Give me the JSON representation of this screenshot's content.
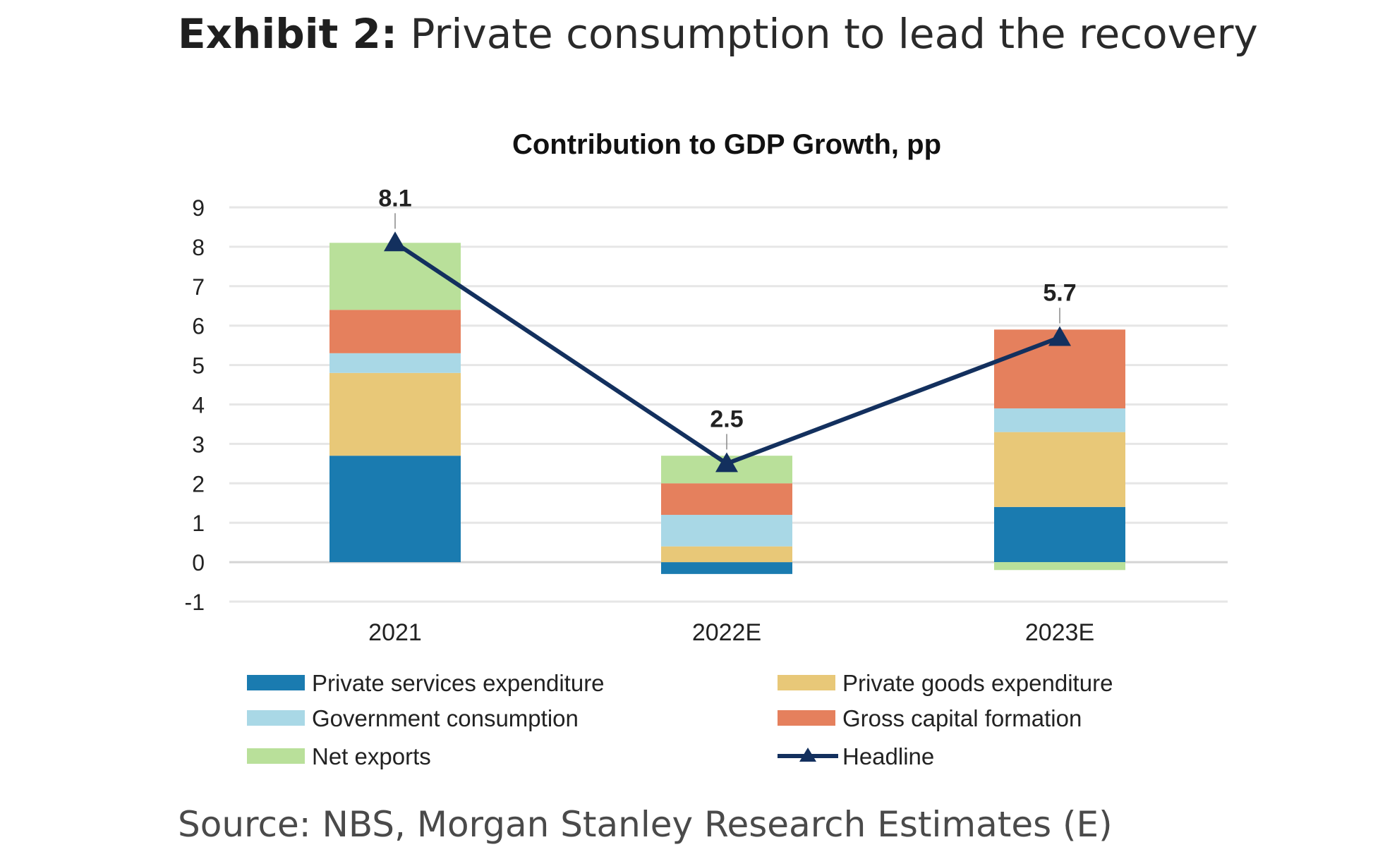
{
  "exhibit": {
    "label": "Exhibit 2:",
    "headline": "Private consumption to lead the recovery",
    "source": "Source: NBS, Morgan Stanley Research Estimates (E)"
  },
  "chart_data": {
    "type": "bar",
    "stacked": true,
    "title": "Contribution to GDP Growth, pp",
    "categories": [
      "2021",
      "2022E",
      "2023E"
    ],
    "ylim": [
      -1,
      9
    ],
    "yticks": [
      -1,
      0,
      1,
      2,
      3,
      4,
      5,
      6,
      7,
      8,
      9
    ],
    "grid": true,
    "legend_position": "bottom",
    "series": [
      {
        "name": "Private services expenditure",
        "color": "#1a7bb0",
        "values": [
          2.7,
          -0.3,
          1.4
        ]
      },
      {
        "name": "Private goods expenditure",
        "color": "#e8c878",
        "values": [
          2.1,
          0.4,
          1.9
        ]
      },
      {
        "name": "Government consumption",
        "color": "#a9d8e6",
        "values": [
          0.5,
          0.8,
          0.6
        ]
      },
      {
        "name": "Gross capital formation",
        "color": "#e5805d",
        "values": [
          1.1,
          0.8,
          2.0
        ]
      },
      {
        "name": "Net exports",
        "color": "#b9e09a",
        "values": [
          1.7,
          0.7,
          -0.2
        ]
      }
    ],
    "line": {
      "name": "Headline",
      "color": "#13305e",
      "marker": "triangle",
      "values": [
        8.1,
        2.5,
        5.7
      ],
      "labels": [
        "8.1",
        "2.5",
        "5.7"
      ]
    }
  }
}
